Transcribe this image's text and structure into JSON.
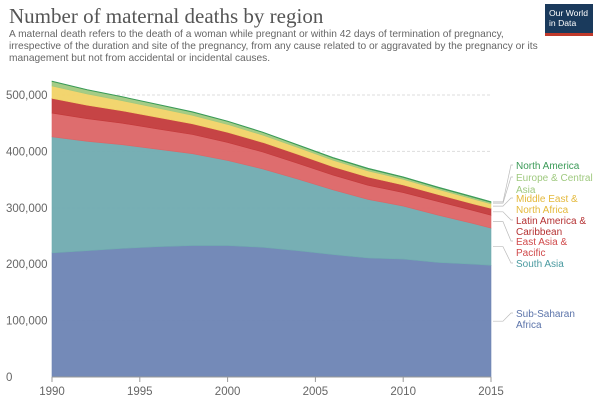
{
  "header": {
    "title": "Number of maternal deaths by region",
    "subtitle": "A maternal death refers to the death of a woman while pregnant or within 42 days of termination of pregnancy, irrespective of the duration and site of the pregnancy, from any cause related to or aggravated by the pregnancy or its management but not from accidental or incidental causes.",
    "logo": "Our World in Data"
  },
  "chart_data": {
    "type": "area",
    "stacked": true,
    "x": [
      1990,
      1992,
      1994,
      1996,
      1998,
      2000,
      2002,
      2004,
      2006,
      2008,
      2010,
      2012,
      2014,
      2015
    ],
    "xticks": [
      1990,
      1995,
      2000,
      2005,
      2010,
      2015
    ],
    "yticks": [
      0,
      100000,
      200000,
      300000,
      400000,
      500000
    ],
    "ytick_labels": [
      "0",
      "100,000",
      "200,000",
      "300,000",
      "400,000",
      "500,000"
    ],
    "ylim": [
      0,
      532000
    ],
    "xlim": [
      1990,
      2015
    ],
    "grid": "horizontal",
    "legend": "right",
    "series": [
      {
        "name": "Sub-Saharan Africa",
        "color": "#6d84b4",
        "values": [
          220000,
          224000,
          228000,
          231000,
          233000,
          233000,
          230000,
          224000,
          217000,
          211000,
          209000,
          203000,
          200000,
          198000
        ]
      },
      {
        "name": "South Asia",
        "color": "#70abb0",
        "values": [
          206000,
          194000,
          184000,
          173000,
          163000,
          151000,
          139000,
          127000,
          115000,
          104000,
          94000,
          84000,
          72000,
          66000
        ]
      },
      {
        "name": "East Asia & Pacific",
        "color": "#dc6566",
        "values": [
          42000,
          40000,
          38000,
          36000,
          34000,
          32000,
          30000,
          28000,
          26000,
          25000,
          24000,
          24000,
          23000,
          23000
        ]
      },
      {
        "name": "Latin America & Caribbean",
        "color": "#c33a3b",
        "values": [
          26000,
          24000,
          22000,
          20500,
          19000,
          18000,
          17000,
          16000,
          15000,
          14500,
          13500,
          12500,
          12000,
          12000
        ]
      },
      {
        "name": "Middle East & North Africa",
        "color": "#f1d367",
        "values": [
          22000,
          20000,
          18000,
          16500,
          15000,
          14000,
          13000,
          12000,
          11500,
          11000,
          10000,
          9000,
          8500,
          8000
        ]
      },
      {
        "name": "Europe & Central Asia",
        "color": "#9fc97f",
        "values": [
          8000,
          7000,
          6500,
          6000,
          5500,
          5000,
          4500,
          4000,
          3700,
          3400,
          3200,
          3000,
          2900,
          2800
        ]
      },
      {
        "name": "North America",
        "color": "#3a9a57",
        "values": [
          800,
          800,
          800,
          800,
          900,
          900,
          1000,
          1100,
          1200,
          1300,
          1300,
          1300,
          1300,
          1300
        ]
      }
    ],
    "legend_labels": [
      {
        "text": "North America",
        "color": "#3a9a57"
      },
      {
        "text": "Europe & Central",
        "color": "#9fc97f"
      },
      {
        "text": "Asia",
        "color": "#9fc97f"
      },
      {
        "text": "Middle East &",
        "color": "#e4b93b"
      },
      {
        "text": "North Africa",
        "color": "#e4b93b"
      },
      {
        "text": "Latin America &",
        "color": "#b53132"
      },
      {
        "text": "Caribbean",
        "color": "#b53132"
      },
      {
        "text": "East Asia &",
        "color": "#d0494a"
      },
      {
        "text": "Pacific",
        "color": "#d0494a"
      },
      {
        "text": "South Asia",
        "color": "#4a9aa0"
      },
      {
        "text": "Sub-Saharan",
        "color": "#5c74aa"
      },
      {
        "text": "Africa",
        "color": "#5c74aa"
      }
    ]
  }
}
